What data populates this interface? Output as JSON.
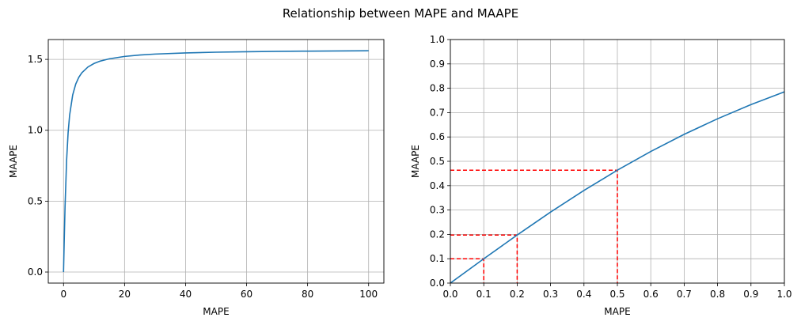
{
  "figure_title": "Relationship between MAPE and MAAPE",
  "colors": {
    "line": "#1f77b4",
    "guide": "#ff0000",
    "grid": "#b0b0b0"
  },
  "chart_data": [
    {
      "type": "line",
      "title": "",
      "xlabel": "MAPE",
      "ylabel": "MAAPE",
      "xlim": [
        -5,
        105
      ],
      "ylim": [
        -0.078,
        1.64
      ],
      "xticks": [
        0,
        20,
        40,
        60,
        80,
        100
      ],
      "xtick_labels": [
        "0",
        "20",
        "40",
        "60",
        "80",
        "100"
      ],
      "yticks": [
        0.0,
        0.5,
        1.0,
        1.5
      ],
      "ytick_labels": [
        "0.0",
        "0.5",
        "1.0",
        "1.5"
      ],
      "grid": true,
      "series": [
        {
          "x": [
            0,
            0.1,
            0.2,
            0.5,
            1,
            1.5,
            2,
            3,
            4,
            5,
            6,
            8,
            10,
            12,
            15,
            20,
            25,
            30,
            40,
            50,
            60,
            70,
            80,
            90,
            100
          ],
          "y": [
            0,
            0.0997,
            0.1974,
            0.4636,
            0.7854,
            0.9828,
            1.1071,
            1.249,
            1.3258,
            1.3734,
            1.4056,
            1.4464,
            1.4711,
            1.4877,
            1.5042,
            1.5208,
            1.5308,
            1.5375,
            1.5458,
            1.5508,
            1.5541,
            1.5565,
            1.5583,
            1.5597,
            1.5608
          ]
        }
      ]
    },
    {
      "type": "line",
      "title": "",
      "xlabel": "MAPE",
      "ylabel": "MAAPE",
      "xlim": [
        0,
        1
      ],
      "ylim": [
        0,
        1
      ],
      "xticks": [
        0,
        0.1,
        0.2,
        0.3,
        0.4,
        0.5,
        0.6,
        0.7,
        0.8,
        0.9,
        1.0
      ],
      "xtick_labels": [
        "0.0",
        "0.1",
        "0.2",
        "0.3",
        "0.4",
        "0.5",
        "0.6",
        "0.7",
        "0.8",
        "0.9",
        "1.0"
      ],
      "yticks": [
        0,
        0.1,
        0.2,
        0.3,
        0.4,
        0.5,
        0.6,
        0.7,
        0.8,
        0.9,
        1.0
      ],
      "ytick_labels": [
        "0.0",
        "0.1",
        "0.2",
        "0.3",
        "0.4",
        "0.5",
        "0.6",
        "0.7",
        "0.8",
        "0.9",
        "1.0"
      ],
      "grid": true,
      "series": [
        {
          "x": [
            0,
            0.1,
            0.2,
            0.3,
            0.4,
            0.5,
            0.6,
            0.7,
            0.8,
            0.9,
            1.0
          ],
          "y": [
            0,
            0.0997,
            0.1974,
            0.2915,
            0.3805,
            0.4636,
            0.5404,
            0.6107,
            0.6747,
            0.7328,
            0.7854
          ]
        }
      ],
      "reference_points": [
        {
          "x": 0.1,
          "y": 0.0997
        },
        {
          "x": 0.2,
          "y": 0.1974
        },
        {
          "x": 0.5,
          "y": 0.4636
        }
      ]
    }
  ]
}
